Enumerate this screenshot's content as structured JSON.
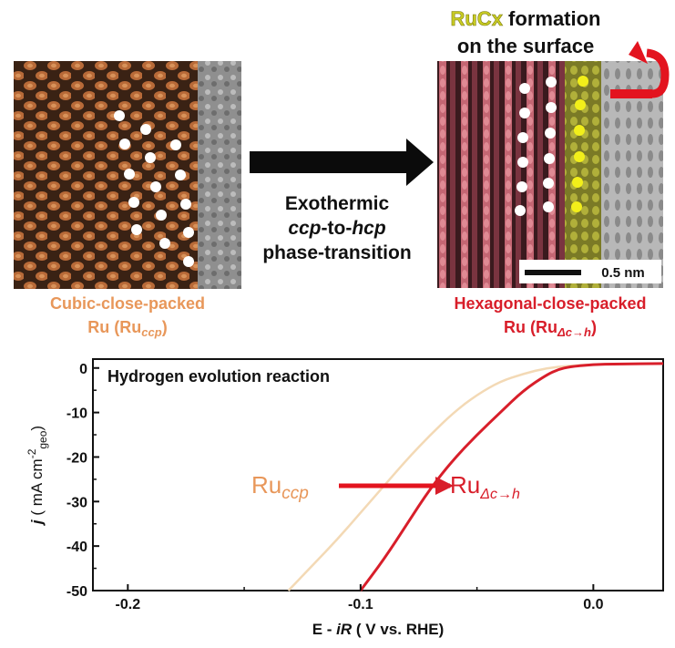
{
  "top": {
    "rucx_prefix": "RuCx",
    "rucx_suffix": " formation",
    "surface_line": "on the surface",
    "arrow_line1": "Exothermic",
    "arrow_line2_a": "ccp",
    "arrow_line2_b": "-to-",
    "arrow_line2_c": "hcp",
    "arrow_line3": "phase-transition",
    "left_label1": "Cubic-close-packed",
    "left_label2_a": "Ru (Ru",
    "left_label2_sub": "ccp",
    "left_label2_c": ")",
    "right_label1": "Hexagonal-close-packed",
    "right_label2_a": "Ru (Ru",
    "right_label2_sub": "Δc→h",
    "right_label2_c": ")",
    "scalebar": "0.5 nm"
  },
  "colors": {
    "ccp": "#e8975a",
    "hcp": "#d81e2a",
    "rucx": "#c9cc24",
    "ccp_curve": "#f3d9b5",
    "hcp_curve": "#d81e2a"
  },
  "chart_data": {
    "type": "line",
    "title": "Hydrogen evolution reaction",
    "xlabel_a": "E - ",
    "xlabel_b": "iR",
    "xlabel_c": " ( V vs. RHE)",
    "ylabel_a": "j",
    "ylabel_b": " ( mA cm",
    "ylabel_sup": "-2",
    "ylabel_sub": "geo",
    "ylabel_c": ")",
    "xlim": [
      -0.215,
      0.03
    ],
    "ylim": [
      -50,
      2
    ],
    "xticks": [
      -0.2,
      -0.1,
      0.0
    ],
    "xtick_labels": [
      "-0.2",
      "-0.1",
      "0.0"
    ],
    "yticks": [
      0,
      -10,
      -20,
      -30,
      -40,
      -50
    ],
    "ytick_labels": [
      "0",
      "-10",
      "-20",
      "-30",
      "-40",
      "-50"
    ],
    "series": [
      {
        "name": "Ruccp",
        "x": [
          -0.131,
          -0.12,
          -0.11,
          -0.1,
          -0.09,
          -0.08,
          -0.07,
          -0.06,
          -0.05,
          -0.04,
          -0.03,
          -0.02,
          -0.01,
          0.0,
          0.01,
          0.03
        ],
        "y": [
          -50,
          -44,
          -38.5,
          -32.5,
          -26.5,
          -20.5,
          -15,
          -10,
          -6,
          -3,
          -1.3,
          0,
          0.5,
          0.8,
          0.9,
          1.0
        ]
      },
      {
        "name": "RuΔc→h",
        "x": [
          -0.1,
          -0.09,
          -0.08,
          -0.07,
          -0.06,
          -0.05,
          -0.04,
          -0.03,
          -0.02,
          -0.015,
          -0.01,
          0.0,
          0.01,
          0.03
        ],
        "y": [
          -50,
          -43,
          -35,
          -27,
          -20.5,
          -15,
          -10,
          -5,
          -1.5,
          -0.3,
          0.3,
          0.8,
          0.9,
          1.0
        ]
      }
    ],
    "annotation_left_a": "Ru",
    "annotation_left_sub": "ccp",
    "annotation_right_a": "Ru",
    "annotation_right_sub": "Δc→h"
  }
}
